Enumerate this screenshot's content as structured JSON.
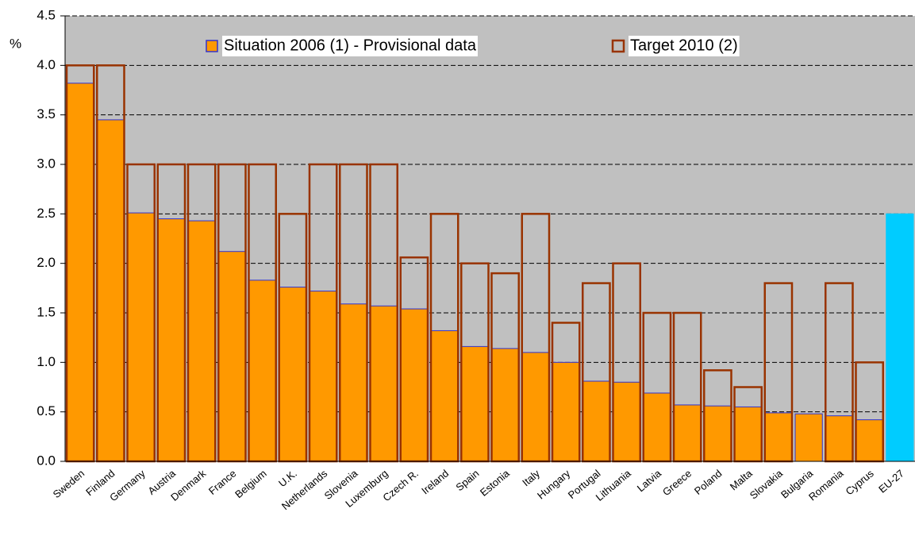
{
  "chart_data": {
    "type": "bar",
    "y_label": "%",
    "categories": [
      "Sweden",
      "Finland",
      "Germany",
      "Austria",
      "Denmark",
      "France",
      "Belgium",
      "U.K.",
      "Netherlands",
      "Slovenia",
      "Luxemburg",
      "Czech R.",
      "Ireland",
      "Spain",
      "Estonia",
      "Italy",
      "Hungary",
      "Portugal",
      "Lithuania",
      "Latvia",
      "Greece",
      "Poland",
      "Malta",
      "Slovakia",
      "Bulgaria",
      "Romania",
      "Cyprus",
      "EU-27"
    ],
    "series": [
      {
        "name": "Situation 2006 (1) - Provisional data",
        "color": "#ff9900",
        "colors": [
          "#ff9900",
          "#ff9900",
          "#ff9900",
          "#ff9900",
          "#ff9900",
          "#ff9900",
          "#ff9900",
          "#ff9900",
          "#ff9900",
          "#ff9900",
          "#ff9900",
          "#ff9900",
          "#ff9900",
          "#ff9900",
          "#ff9900",
          "#ff9900",
          "#ff9900",
          "#ff9900",
          "#ff9900",
          "#ff9900",
          "#ff9900",
          "#ff9900",
          "#ff9900",
          "#ff9900",
          "#ff9900",
          "#ff9900",
          "#ff9900",
          "#00ccff"
        ],
        "values": [
          3.82,
          3.45,
          2.51,
          2.45,
          2.43,
          2.12,
          1.83,
          1.76,
          1.72,
          1.59,
          1.57,
          1.54,
          1.32,
          1.16,
          1.14,
          1.1,
          1.0,
          0.81,
          0.8,
          0.69,
          0.57,
          0.56,
          0.55,
          0.49,
          0.48,
          0.46,
          0.42,
          2.5
        ]
      },
      {
        "name": "Target 2010 (2)",
        "color": "#993300",
        "values": [
          4,
          4,
          3,
          3,
          3,
          3,
          3,
          2.5,
          3,
          3,
          3,
          2.06,
          2.5,
          2,
          1.9,
          2.5,
          1.4,
          1.8,
          2,
          1.5,
          1.5,
          0.92,
          0.75,
          1.8,
          null,
          1.8,
          1.0,
          null
        ]
      }
    ],
    "ylim": [
      0,
      4.5
    ],
    "yticks": [
      {
        "value": 0,
        "label": "0.0"
      },
      {
        "value": 0.5,
        "label": "0.5"
      },
      {
        "value": 1,
        "label": "1.0"
      },
      {
        "value": 1.5,
        "label": "1.5"
      },
      {
        "value": 2,
        "label": "2.0"
      },
      {
        "value": 2.5,
        "label": "2.5"
      },
      {
        "value": 3,
        "label": "3.0"
      },
      {
        "value": 3.5,
        "label": "3.5"
      },
      {
        "value": 4,
        "label": "4.0"
      },
      {
        "value": 4.5,
        "label": "4.5"
      }
    ],
    "grid": true,
    "background": "#c0c0c0",
    "legend": "top"
  }
}
